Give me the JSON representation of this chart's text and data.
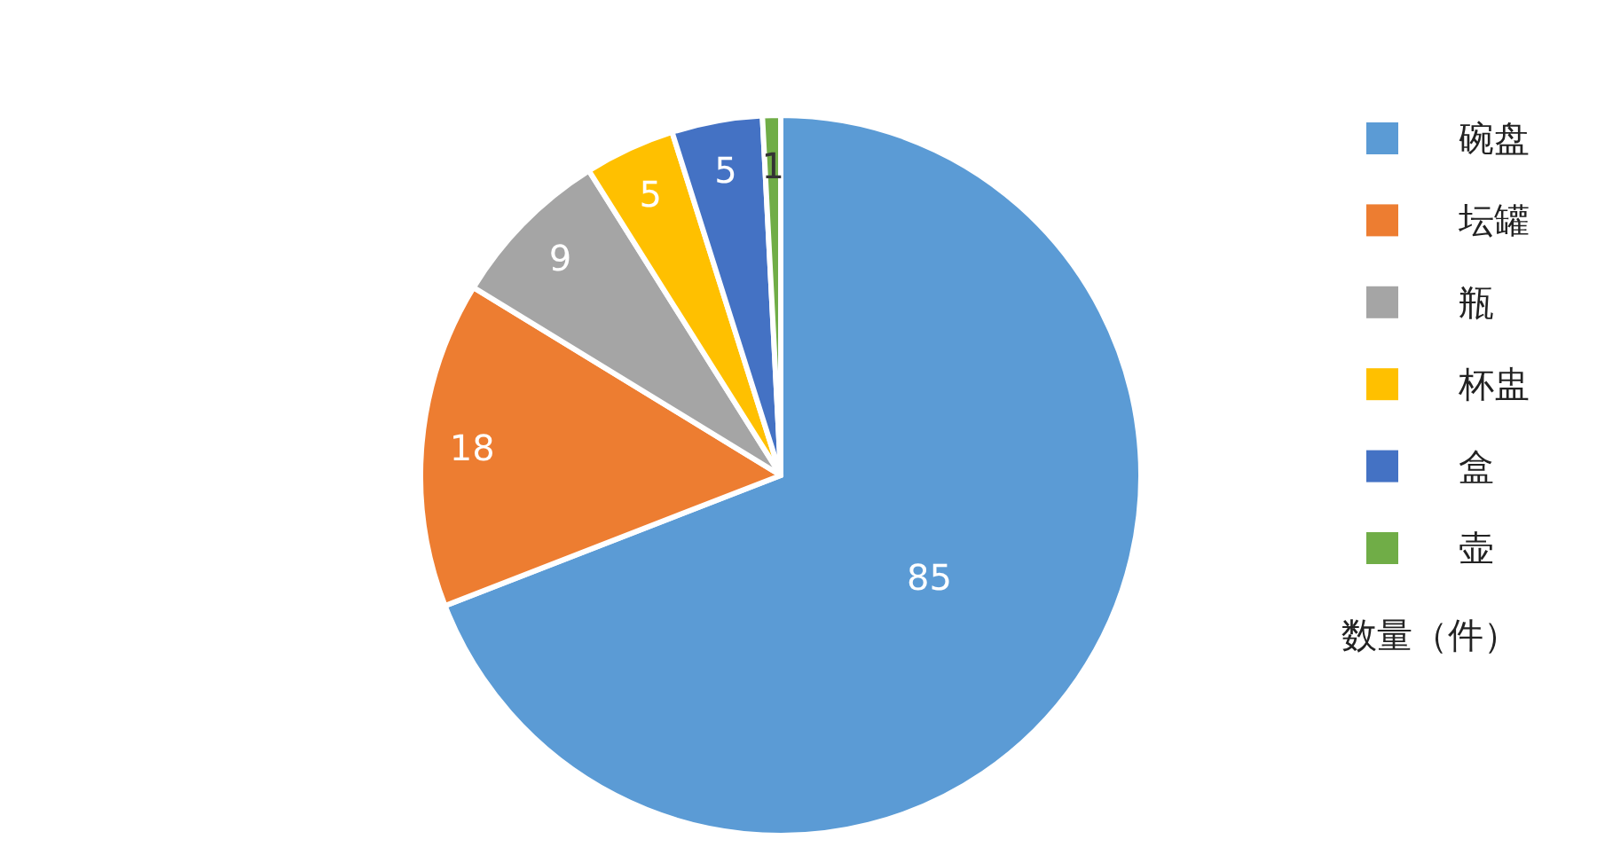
{
  "chart_data": {
    "type": "pie",
    "legend_title": "数量（件）",
    "legend": "right",
    "data_labels": true,
    "categories": [
      "碗盘",
      "坛罐",
      "瓶",
      "杯盅",
      "盒",
      "壶"
    ],
    "values": [
      85,
      18,
      9,
      5,
      5,
      1
    ],
    "colors": [
      "#5b9bd5",
      "#ed7d31",
      "#a5a5a5",
      "#ffc000",
      "#4472c4",
      "#70ad47"
    ]
  }
}
